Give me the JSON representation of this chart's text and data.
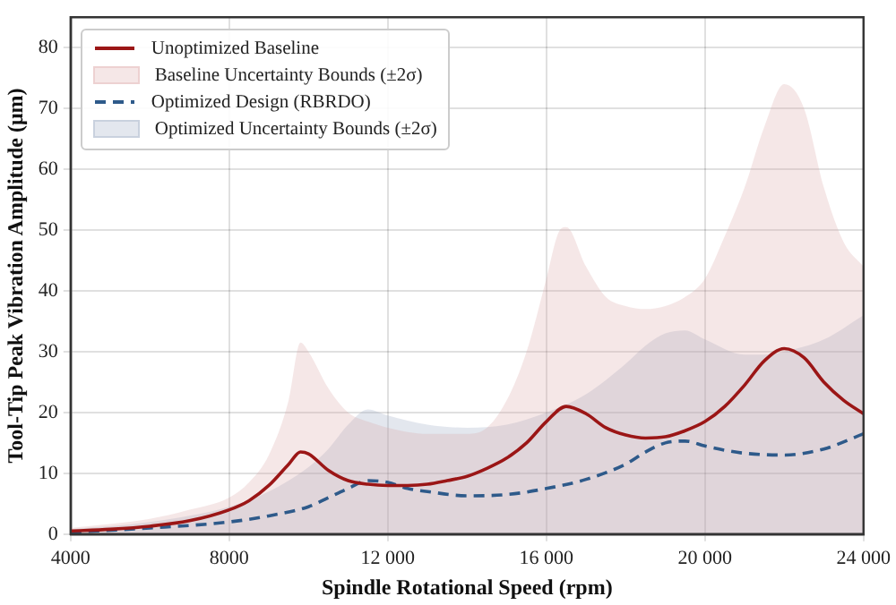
{
  "chart_data": {
    "type": "line",
    "xlabel": "Spindle Rotational Speed (rpm)",
    "ylabel": "Tool-Tip Peak Vibration Amplitude (μm)",
    "xlim": [
      4000,
      24000
    ],
    "xticks": [
      4000,
      8000,
      {
        "value": 12000,
        "label": "12 000"
      },
      {
        "value": 16000,
        "label": "16 000"
      },
      {
        "value": 20000,
        "label": "20 000"
      },
      {
        "value": 24000,
        "label": "24 000"
      }
    ],
    "ylim": [
      0,
      85
    ],
    "yticks": [
      0,
      10,
      20,
      30,
      40,
      50,
      60,
      70,
      80
    ],
    "grid": true,
    "legend": "top left",
    "marker": "none",
    "series": [
      {
        "name": "Baseline Uncertainty Bounds (±2σ)",
        "type": "area",
        "color": "#d9a0a0",
        "x": [
          4000,
          6000,
          7000,
          8000,
          8500,
          9000,
          9500,
          9800,
          10000,
          10500,
          11000,
          11500,
          12000,
          13000,
          14000,
          14500,
          15000,
          15500,
          16000,
          16300,
          16500,
          17000,
          17500,
          18000,
          18500,
          19000,
          19500,
          20000,
          20500,
          21000,
          21500,
          22000,
          22500,
          23000,
          23500,
          24000
        ],
        "values": [
          1,
          2.5,
          4,
          6,
          8.5,
          13,
          22,
          31.5,
          30,
          24,
          20,
          18.5,
          17.5,
          16.5,
          16.5,
          17.5,
          22,
          30,
          42,
          49.5,
          50.5,
          44,
          39,
          37.5,
          37,
          37.5,
          39,
          42,
          49,
          57,
          67,
          74,
          70,
          57,
          48,
          44
        ]
      },
      {
        "name": "Optimized Uncertainty Bounds (±2σ)",
        "type": "area",
        "color": "#8fa0bb",
        "x": [
          4000,
          6000,
          8000,
          9000,
          10000,
          10500,
          11000,
          11500,
          12000,
          13000,
          14000,
          15000,
          16000,
          17000,
          18000,
          18500,
          19000,
          19500,
          20000,
          21000,
          21500,
          22000,
          23000,
          24000
        ],
        "values": [
          0.8,
          2,
          4.5,
          7,
          11,
          14,
          18,
          20.5,
          19.5,
          18,
          17.5,
          18,
          20,
          23,
          28,
          31,
          33,
          33.5,
          32,
          29.5,
          29.5,
          30,
          32,
          36
        ]
      },
      {
        "name": "Unoptimized Baseline",
        "line_style": "solid",
        "color": "#9b1616",
        "x": [
          4000,
          5000,
          6000,
          7000,
          8000,
          8500,
          9000,
          9500,
          9800,
          10000,
          10500,
          11000,
          11500,
          12000,
          12500,
          13000,
          13500,
          14000,
          14500,
          15000,
          15500,
          16000,
          16500,
          17000,
          17500,
          18000,
          18500,
          19000,
          19500,
          20000,
          20500,
          21000,
          21500,
          22000,
          22500,
          23000,
          23500,
          24000
        ],
        "values": [
          0.5,
          0.8,
          1.3,
          2.2,
          4,
          5.5,
          8,
          11.5,
          13.5,
          13.2,
          10.5,
          8.8,
          8.2,
          8,
          8,
          8.2,
          8.8,
          9.5,
          10.8,
          12.5,
          15,
          18.5,
          21,
          19.8,
          17.5,
          16.3,
          15.8,
          16,
          17,
          18.5,
          21,
          24.5,
          28.5,
          30.5,
          29,
          25,
          22,
          19.8
        ]
      },
      {
        "name": "Optimized Design (RBRDO)",
        "line_style": "dashed",
        "color": "#2e5a8a",
        "x": [
          4000,
          6000,
          8000,
          9000,
          10000,
          10500,
          11000,
          11500,
          12000,
          12500,
          13000,
          14000,
          15000,
          16000,
          17000,
          18000,
          18500,
          19000,
          19500,
          20000,
          20500,
          21000,
          22000,
          23000,
          24000
        ],
        "values": [
          0.3,
          1,
          2,
          3,
          4.5,
          6,
          7.5,
          8.8,
          8.5,
          7.5,
          7,
          6.3,
          6.5,
          7.5,
          9,
          11.5,
          13.5,
          15,
          15.3,
          14.5,
          13.8,
          13.3,
          13,
          14,
          16.5
        ]
      }
    ]
  }
}
